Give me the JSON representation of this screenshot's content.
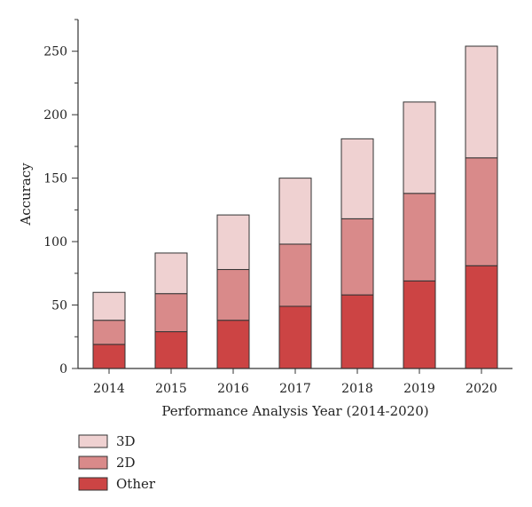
{
  "chart_data": {
    "type": "bar",
    "stacked": true,
    "categories": [
      "2014",
      "2015",
      "2016",
      "2017",
      "2018",
      "2019",
      "2020"
    ],
    "series": [
      {
        "name": "Other",
        "color": "#cc4444",
        "values": [
          19,
          29,
          38,
          49,
          58,
          69,
          81
        ]
      },
      {
        "name": "2D",
        "color": "#d98a8a",
        "values": [
          19,
          30,
          40,
          49,
          60,
          69,
          85
        ]
      },
      {
        "name": "3D",
        "color": "#efd1d1",
        "values": [
          22,
          32,
          43,
          52,
          63,
          72,
          88
        ]
      }
    ],
    "xlabel": "Performance Analysis Year (2014-2020)",
    "ylabel": "Accuracy",
    "ylim": [
      0,
      275
    ],
    "yticks": [
      0,
      50,
      100,
      150,
      200,
      250
    ],
    "grid": false,
    "legend_position": "bottom-left",
    "legend_order": [
      "3D",
      "2D",
      "Other"
    ]
  }
}
